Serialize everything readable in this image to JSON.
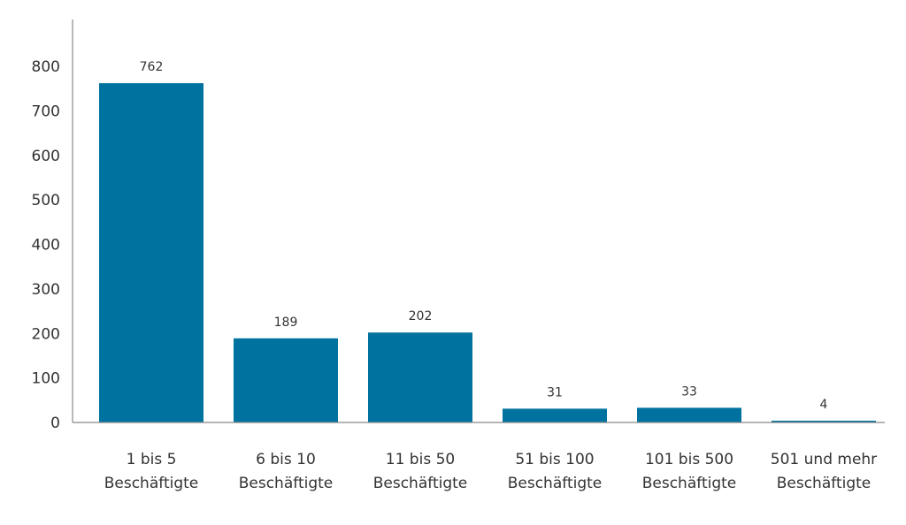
{
  "chart_data": {
    "type": "bar",
    "title": "",
    "xlabel": "",
    "ylabel": "",
    "ylim": [
      0,
      800
    ],
    "yticks": [
      0,
      100,
      200,
      300,
      400,
      500,
      600,
      700,
      800
    ],
    "categories": [
      [
        "1 bis 5",
        "Beschäftigte"
      ],
      [
        "6 bis 10",
        "Beschäftigte"
      ],
      [
        "11 bis 50",
        "Beschäftigte"
      ],
      [
        "51 bis 100",
        "Beschäftigte"
      ],
      [
        "101 bis 500",
        "Beschäftigte"
      ],
      [
        "501 und mehr",
        "Beschäftigte"
      ]
    ],
    "values": [
      762,
      189,
      202,
      31,
      33,
      4
    ],
    "bar_color": "#00729f",
    "grid": false,
    "legend": "none"
  }
}
